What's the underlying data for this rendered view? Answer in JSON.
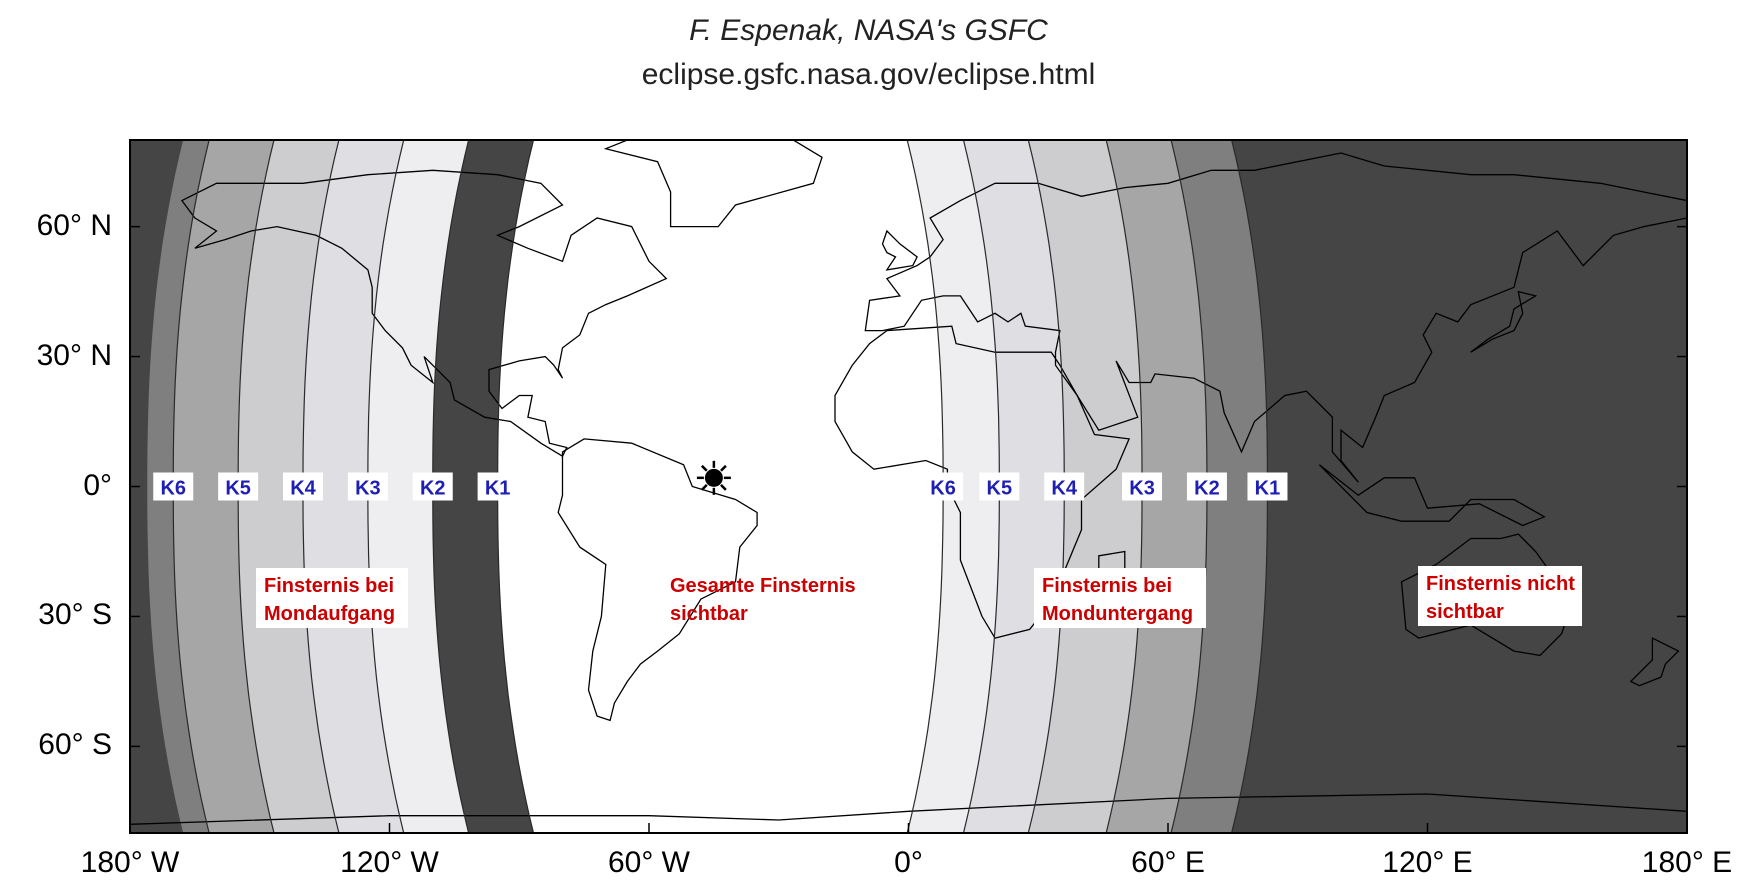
{
  "credit": {
    "author": "F. Espenak, NASA's GSFC",
    "url": "eclipse.gsfc.nasa.gov/eclipse.html"
  },
  "axes": {
    "lat_labels": [
      "60° N",
      "30° N",
      "0°",
      "30° S",
      "60° S"
    ],
    "lat_values": [
      60,
      30,
      0,
      -30,
      -60
    ],
    "lon_labels": [
      "180° W",
      "120° W",
      "60° W",
      "0°",
      "60° E",
      "120° E",
      "180° E"
    ],
    "lon_values": [
      -180,
      -120,
      -60,
      0,
      60,
      120,
      180
    ],
    "lat_range": [
      -80,
      80
    ],
    "lon_range": [
      -180,
      180
    ]
  },
  "colors": {
    "night": "#454545",
    "band_dark": "#7f7f7f",
    "band_mid": "#a6a6a6",
    "band_light": "#cdcdd0",
    "band_lighter": "#dfdfe3",
    "band_lightest": "#eeeef0",
    "full_view": "#ffffff",
    "contact_label": "#1f1fb4",
    "region_label": "#cc0000"
  },
  "contacts_west": [
    {
      "label": "K6",
      "lon": -170
    },
    {
      "label": "K5",
      "lon": -155
    },
    {
      "label": "K4",
      "lon": -140
    },
    {
      "label": "K3",
      "lon": -125
    },
    {
      "label": "K2",
      "lon": -110
    },
    {
      "label": "K1",
      "lon": -95
    }
  ],
  "contacts_east": [
    {
      "label": "K6",
      "lon": 8
    },
    {
      "label": "K5",
      "lon": 21
    },
    {
      "label": "K4",
      "lon": 36
    },
    {
      "label": "K3",
      "lon": 54
    },
    {
      "label": "K2",
      "lon": 69
    },
    {
      "label": "K1",
      "lon": 83
    }
  ],
  "regions": {
    "moonrise": [
      "Finsternis bei",
      "Mondaufgang"
    ],
    "total": [
      "Gesamte Finsternis",
      "sichtbar"
    ],
    "moonset": [
      "Finsternis bei",
      "Monduntergang"
    ],
    "not_visible": [
      "Finsternis nicht",
      "sichtbar"
    ]
  },
  "subsolar_marker": {
    "lon": -45,
    "lat": 2,
    "icon": "sun-icon"
  }
}
